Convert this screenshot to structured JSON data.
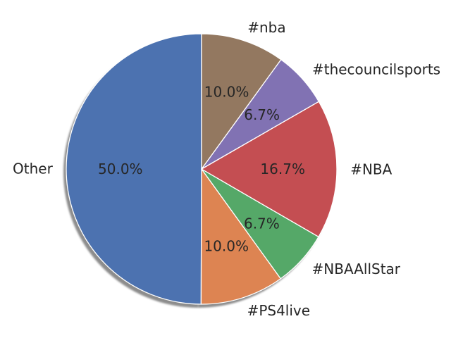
{
  "chart_data": {
    "type": "pie",
    "title": "",
    "start_angle_deg": 90,
    "direction": "counterclockwise",
    "shadow": true,
    "slices": [
      {
        "label": "Other",
        "value": 50.0,
        "pct_label": "50.0%",
        "color": "#4c72b0"
      },
      {
        "label": "#PS4live",
        "value": 10.0,
        "pct_label": "10.0%",
        "color": "#dd8452"
      },
      {
        "label": "#NBAAllStar",
        "value": 6.7,
        "pct_label": "6.7%",
        "color": "#55a868"
      },
      {
        "label": "#NBA",
        "value": 16.7,
        "pct_label": "16.7%",
        "color": "#c44e52"
      },
      {
        "label": "#thecouncilsports",
        "value": 6.7,
        "pct_label": "6.7%",
        "color": "#8172b3"
      },
      {
        "label": "#nba",
        "value": 10.0,
        "pct_label": "10.0%",
        "color": "#937860"
      }
    ]
  }
}
